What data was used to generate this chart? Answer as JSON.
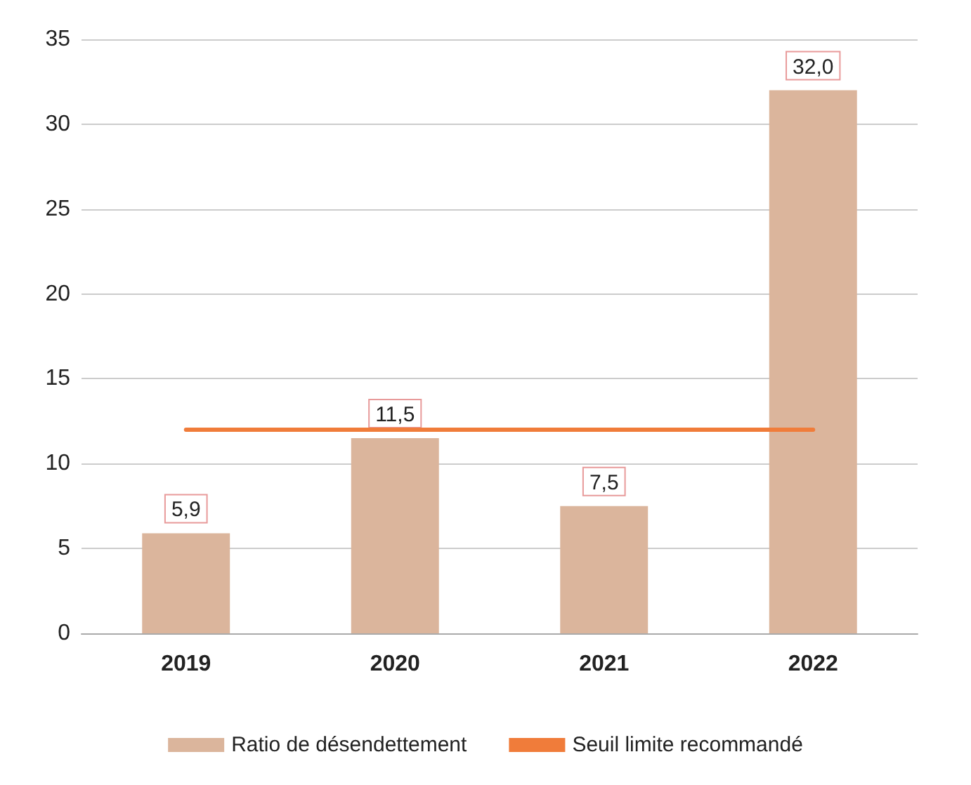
{
  "chart_data": {
    "type": "bar",
    "categories": [
      "2019",
      "2020",
      "2021",
      "2022"
    ],
    "series": [
      {
        "name": "Ratio de désendettement",
        "color": "#dbb59c",
        "values": [
          5.9,
          11.5,
          7.5,
          32.0
        ],
        "value_labels": [
          "5,9",
          "11,5",
          "7,5",
          "32,0"
        ]
      },
      {
        "name": "Seuil limite recommandé",
        "type": "line",
        "color": "#f07c3a",
        "values": [
          12,
          12,
          12,
          12
        ],
        "marker": "none"
      }
    ],
    "ylim": [
      0,
      35
    ],
    "yticks": [
      0,
      5,
      10,
      15,
      20,
      25,
      30,
      35
    ],
    "grid": "y",
    "legend": "bottom"
  }
}
